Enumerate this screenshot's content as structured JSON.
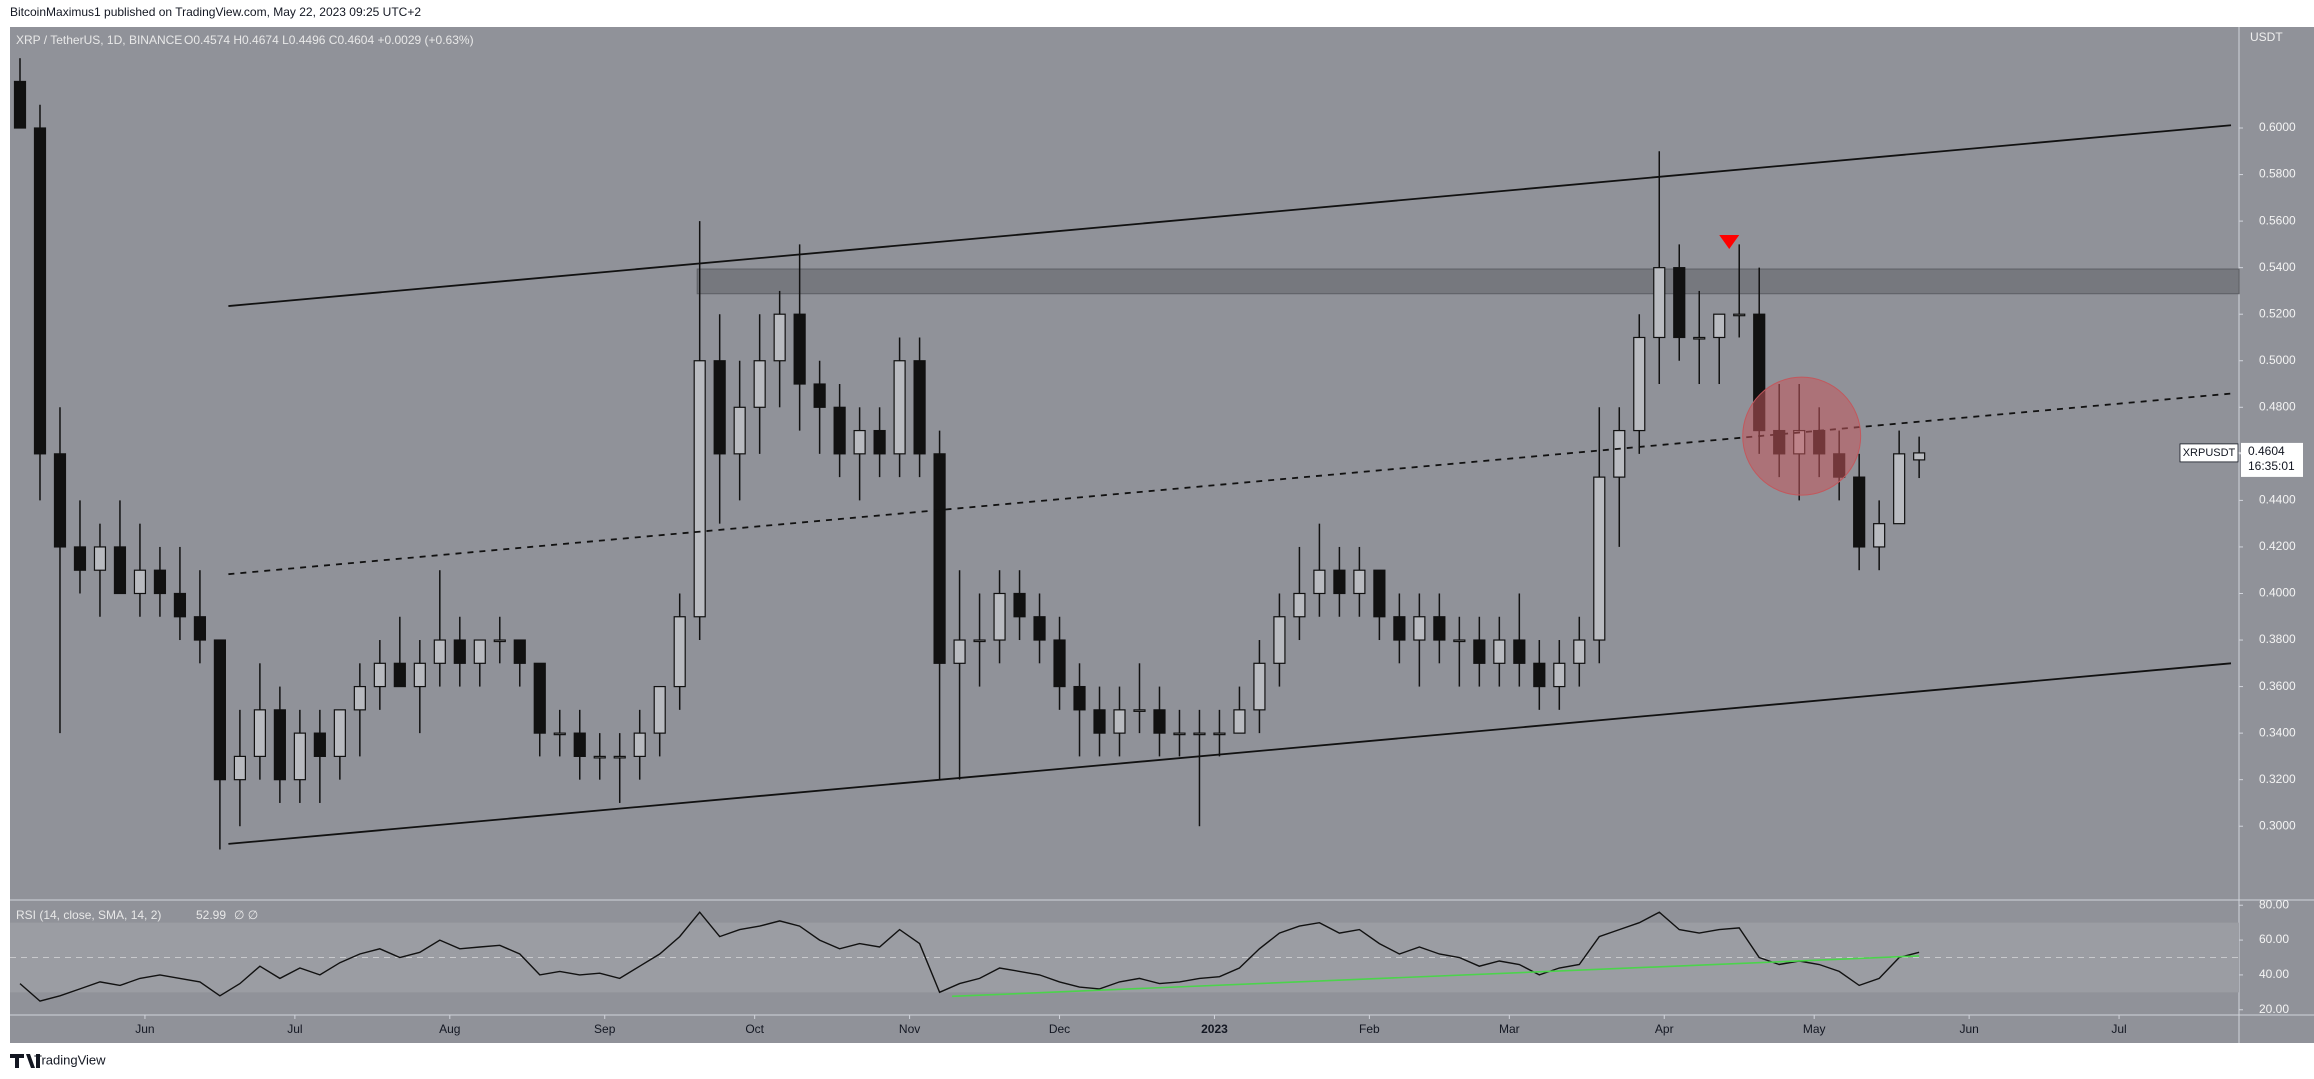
{
  "header": {
    "publisher": "BitcoinMaximus1 published on TradingView.com, May 22, 2023 09:25 UTC+2",
    "footer": "TradingView"
  },
  "chart_data": {
    "type": "candlestick",
    "symbol": "XRP / TetherUS, 1D, BINANCE",
    "ohlc_text": "O0.4574 H0.4674 L0.4496 C0.4604 +0.0029 (+0.63%)",
    "currency": "USDT",
    "last_price": {
      "name": "XRPUSDT",
      "value": 0.4604,
      "label": "0.4604",
      "countdown": "16:35:01"
    },
    "x": [
      2,
      6,
      10,
      14,
      18,
      22,
      26,
      30,
      34,
      38,
      42,
      46,
      50,
      54,
      58,
      62,
      66,
      70,
      74,
      78,
      82,
      86,
      90,
      94,
      98,
      102,
      106,
      110,
      114,
      118,
      122,
      126,
      130,
      134,
      138,
      142,
      146,
      150,
      154,
      158,
      162,
      166,
      170,
      174,
      178,
      182,
      186,
      190,
      194,
      198,
      202,
      206,
      210,
      214,
      218,
      222,
      226,
      230,
      234,
      238,
      242,
      246,
      250,
      254,
      258,
      262,
      266,
      270,
      274,
      278,
      282,
      286,
      290,
      294,
      298,
      302,
      306,
      310,
      314,
      318,
      322,
      326,
      330,
      334,
      338,
      342,
      346,
      350,
      354,
      358,
      362,
      366,
      370,
      374,
      378,
      382
    ],
    "open": [
      0.62,
      0.6,
      0.46,
      0.42,
      0.41,
      0.42,
      0.4,
      0.41,
      0.4,
      0.39,
      0.38,
      0.32,
      0.33,
      0.35,
      0.32,
      0.34,
      0.33,
      0.35,
      0.36,
      0.37,
      0.36,
      0.37,
      0.38,
      0.37,
      0.38,
      0.38,
      0.37,
      0.34,
      0.34,
      0.33,
      0.33,
      0.33,
      0.34,
      0.36,
      0.39,
      0.5,
      0.46,
      0.48,
      0.5,
      0.52,
      0.49,
      0.48,
      0.46,
      0.47,
      0.46,
      0.5,
      0.46,
      0.37,
      0.38,
      0.38,
      0.4,
      0.39,
      0.38,
      0.36,
      0.35,
      0.34,
      0.35,
      0.35,
      0.34,
      0.34,
      0.34,
      0.34,
      0.35,
      0.37,
      0.39,
      0.4,
      0.41,
      0.4,
      0.41,
      0.39,
      0.38,
      0.39,
      0.38,
      0.38,
      0.37,
      0.38,
      0.37,
      0.36,
      0.37,
      0.38,
      0.45,
      0.47,
      0.51,
      0.54,
      0.51,
      0.51,
      0.52,
      0.52,
      0.47,
      0.46,
      0.47,
      0.46,
      0.45,
      0.42,
      0.43,
      0.4574
    ],
    "high": [
      0.63,
      0.61,
      0.48,
      0.44,
      0.43,
      0.44,
      0.43,
      0.42,
      0.42,
      0.41,
      0.38,
      0.35,
      0.37,
      0.36,
      0.35,
      0.35,
      0.35,
      0.37,
      0.38,
      0.39,
      0.38,
      0.41,
      0.39,
      0.38,
      0.39,
      0.38,
      0.37,
      0.35,
      0.35,
      0.34,
      0.34,
      0.35,
      0.36,
      0.4,
      0.56,
      0.52,
      0.5,
      0.52,
      0.53,
      0.55,
      0.5,
      0.49,
      0.48,
      0.48,
      0.51,
      0.51,
      0.47,
      0.41,
      0.4,
      0.41,
      0.41,
      0.4,
      0.39,
      0.37,
      0.36,
      0.36,
      0.37,
      0.36,
      0.35,
      0.35,
      0.35,
      0.36,
      0.38,
      0.4,
      0.42,
      0.43,
      0.42,
      0.42,
      0.41,
      0.4,
      0.4,
      0.4,
      0.39,
      0.39,
      0.39,
      0.4,
      0.38,
      0.38,
      0.39,
      0.48,
      0.48,
      0.52,
      0.59,
      0.55,
      0.53,
      0.52,
      0.55,
      0.54,
      0.49,
      0.49,
      0.48,
      0.47,
      0.46,
      0.44,
      0.47,
      0.4674
    ],
    "low": [
      0.6,
      0.44,
      0.34,
      0.4,
      0.39,
      0.4,
      0.39,
      0.39,
      0.38,
      0.37,
      0.29,
      0.3,
      0.32,
      0.31,
      0.31,
      0.31,
      0.32,
      0.33,
      0.35,
      0.36,
      0.34,
      0.36,
      0.36,
      0.36,
      0.37,
      0.36,
      0.33,
      0.33,
      0.32,
      0.32,
      0.31,
      0.32,
      0.33,
      0.35,
      0.38,
      0.43,
      0.44,
      0.46,
      0.48,
      0.47,
      0.46,
      0.45,
      0.44,
      0.45,
      0.45,
      0.45,
      0.32,
      0.32,
      0.36,
      0.37,
      0.38,
      0.37,
      0.35,
      0.33,
      0.33,
      0.33,
      0.34,
      0.33,
      0.33,
      0.3,
      0.33,
      0.34,
      0.34,
      0.36,
      0.38,
      0.39,
      0.39,
      0.39,
      0.38,
      0.37,
      0.36,
      0.37,
      0.36,
      0.36,
      0.36,
      0.36,
      0.35,
      0.35,
      0.36,
      0.37,
      0.42,
      0.46,
      0.49,
      0.5,
      0.49,
      0.49,
      0.51,
      0.46,
      0.45,
      0.44,
      0.45,
      0.44,
      0.41,
      0.41,
      0.43,
      0.4496
    ],
    "close": [
      0.6,
      0.46,
      0.42,
      0.41,
      0.42,
      0.4,
      0.41,
      0.4,
      0.39,
      0.38,
      0.32,
      0.33,
      0.35,
      0.32,
      0.34,
      0.33,
      0.35,
      0.36,
      0.37,
      0.36,
      0.37,
      0.38,
      0.37,
      0.38,
      0.38,
      0.37,
      0.34,
      0.34,
      0.33,
      0.33,
      0.33,
      0.34,
      0.36,
      0.39,
      0.5,
      0.46,
      0.48,
      0.5,
      0.52,
      0.49,
      0.48,
      0.46,
      0.47,
      0.46,
      0.5,
      0.46,
      0.37,
      0.38,
      0.38,
      0.4,
      0.39,
      0.38,
      0.36,
      0.35,
      0.34,
      0.35,
      0.35,
      0.34,
      0.34,
      0.34,
      0.34,
      0.35,
      0.37,
      0.39,
      0.4,
      0.41,
      0.4,
      0.41,
      0.39,
      0.38,
      0.39,
      0.38,
      0.38,
      0.37,
      0.38,
      0.37,
      0.36,
      0.37,
      0.38,
      0.45,
      0.47,
      0.51,
      0.54,
      0.51,
      0.51,
      0.52,
      0.52,
      0.47,
      0.46,
      0.47,
      0.46,
      0.45,
      0.42,
      0.43,
      0.46,
      0.4604
    ],
    "xlim": [
      0,
      446
    ],
    "xticks": [
      {
        "value": 27,
        "label": "Jun"
      },
      {
        "value": 57,
        "label": "Jul"
      },
      {
        "value": 88,
        "label": "Aug"
      },
      {
        "value": 119,
        "label": "Sep"
      },
      {
        "value": 149,
        "label": "Oct"
      },
      {
        "value": 180,
        "label": "Nov"
      },
      {
        "value": 210,
        "label": "Dec"
      },
      {
        "value": 241,
        "label": "2023"
      },
      {
        "value": 272,
        "label": "Feb"
      },
      {
        "value": 300,
        "label": "Mar"
      },
      {
        "value": 331,
        "label": "Apr"
      },
      {
        "value": 361,
        "label": "May"
      },
      {
        "value": 392,
        "label": "Jun"
      },
      {
        "value": 422,
        "label": "Jul"
      }
    ],
    "ylim": [
      0.2683,
      0.6434
    ],
    "yticks": [
      {
        "value": 0.3,
        "label": "0.3000"
      },
      {
        "value": 0.32,
        "label": "0.3200"
      },
      {
        "value": 0.34,
        "label": "0.3400"
      },
      {
        "value": 0.36,
        "label": "0.3600"
      },
      {
        "value": 0.38,
        "label": "0.3800"
      },
      {
        "value": 0.4,
        "label": "0.4000"
      },
      {
        "value": 0.42,
        "label": "0.4200"
      },
      {
        "value": 0.44,
        "label": "0.4400"
      },
      {
        "value": 0.46,
        "label": "0.4600"
      },
      {
        "value": 0.48,
        "label": "0.4800"
      },
      {
        "value": 0.5,
        "label": "0.5000"
      },
      {
        "value": 0.52,
        "label": "0.5200"
      },
      {
        "value": 0.54,
        "label": "0.5400"
      },
      {
        "value": 0.56,
        "label": "0.5600"
      },
      {
        "value": 0.58,
        "label": "0.5800"
      },
      {
        "value": 0.6,
        "label": "0.6000"
      }
    ],
    "grid": false,
    "drawings": {
      "upper_channel": {
        "x": [
          43.7,
          444.4
        ],
        "y": [
          0.5235,
          0.6012
        ]
      },
      "mid_channel": {
        "x": [
          43.7,
          444.4
        ],
        "y": [
          0.4083,
          0.4859
        ]
      },
      "lower_channel": {
        "x": [
          43.7,
          444.4
        ],
        "y": [
          0.2924,
          0.37
        ]
      },
      "resistance": {
        "x": [
          137.5,
          446
        ],
        "y": [
          0.5288,
          0.5394
        ]
      },
      "triangle": {
        "x": 344,
        "y": 0.551,
        "color": "#ff0000"
      },
      "circle": {
        "x": 358.5,
        "y": 0.4676,
        "r": 11.8,
        "color": "#c2585d"
      }
    },
    "rsi": {
      "label": "RSI (14, close, SMA, 14, 2)",
      "last": "52.99",
      "extra": "∅ ∅",
      "values": [
        35,
        25,
        28,
        32,
        36,
        34,
        38,
        40,
        38,
        36,
        28,
        35,
        45,
        38,
        44,
        40,
        47,
        52,
        55,
        50,
        53,
        60,
        55,
        56,
        57,
        52,
        40,
        42,
        40,
        41,
        38,
        45,
        52,
        62,
        76,
        62,
        66,
        68,
        71,
        68,
        60,
        55,
        58,
        56,
        66,
        58,
        30,
        35,
        38,
        44,
        42,
        40,
        36,
        33,
        32,
        36,
        38,
        35,
        36,
        38,
        39,
        44,
        55,
        64,
        68,
        70,
        64,
        66,
        58,
        52,
        56,
        52,
        50,
        45,
        48,
        46,
        40,
        44,
        46,
        62,
        66,
        70,
        76,
        66,
        64,
        66,
        67,
        50,
        46,
        48,
        46,
        42,
        34,
        38,
        50,
        52.99
      ],
      "ylim": [
        17,
        83
      ],
      "yticks": [
        {
          "value": 20,
          "label": "20.00"
        },
        {
          "value": 40,
          "label": "40.00"
        },
        {
          "value": 60,
          "label": "60.00"
        },
        {
          "value": 80,
          "label": "80.00"
        }
      ],
      "band": [
        30,
        70
      ],
      "midline": 50,
      "trend": {
        "x": [
          188.5,
          382
        ],
        "y": [
          27.7,
          50.9
        ],
        "color": "#4cd34c"
      }
    }
  }
}
